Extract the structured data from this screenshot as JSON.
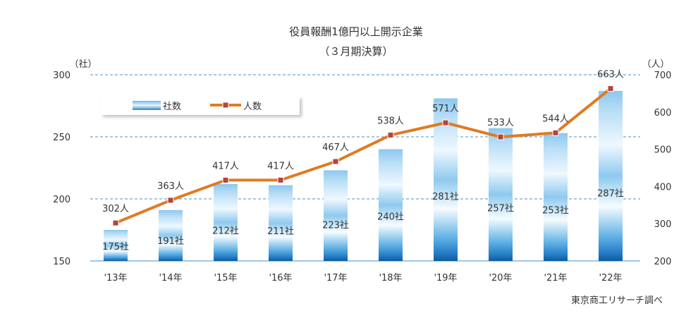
{
  "chart_data": {
    "type": "bar",
    "title": "役員報酬1億円以上開示企業",
    "subtitle": "（３月期決算）",
    "categories": [
      "'13年",
      "'14年",
      "'15年",
      "'16年",
      "'17年",
      "'18年",
      "'19年",
      "'20年",
      "'21年",
      "'22年"
    ],
    "series": [
      {
        "name": "社数",
        "type": "bar",
        "axis": "left",
        "values": [
          175,
          191,
          212,
          211,
          223,
          240,
          281,
          257,
          253,
          287
        ],
        "labels": [
          "175社",
          "191社",
          "212社",
          "211社",
          "223社",
          "240社",
          "281社",
          "257社",
          "253社",
          "287社"
        ]
      },
      {
        "name": "人数",
        "type": "line",
        "axis": "right",
        "values": [
          302,
          363,
          417,
          417,
          467,
          538,
          571,
          533,
          544,
          663
        ],
        "labels": [
          "302人",
          "363人",
          "417人",
          "417人",
          "467人",
          "538人",
          "571人",
          "533人",
          "544人",
          "663人"
        ]
      }
    ],
    "y_left": {
      "unit": "（社）",
      "ylim": [
        150,
        300
      ],
      "ticks": [
        "150",
        "200",
        "250",
        "300"
      ]
    },
    "y_right": {
      "unit": "（人）",
      "ylim": [
        200,
        700
      ],
      "ticks": [
        "200",
        "300",
        "400",
        "500",
        "600",
        "700"
      ]
    },
    "grid": true,
    "legend_position": "top-left",
    "source": "東京商工リサーチ調べ",
    "colors": {
      "line": "#e07b22",
      "marker": "#b5433f",
      "bar_light": "#f4fbff",
      "bar_dark": "#1e76c0",
      "grid": "#4a8fc7",
      "text": "#333333"
    }
  }
}
